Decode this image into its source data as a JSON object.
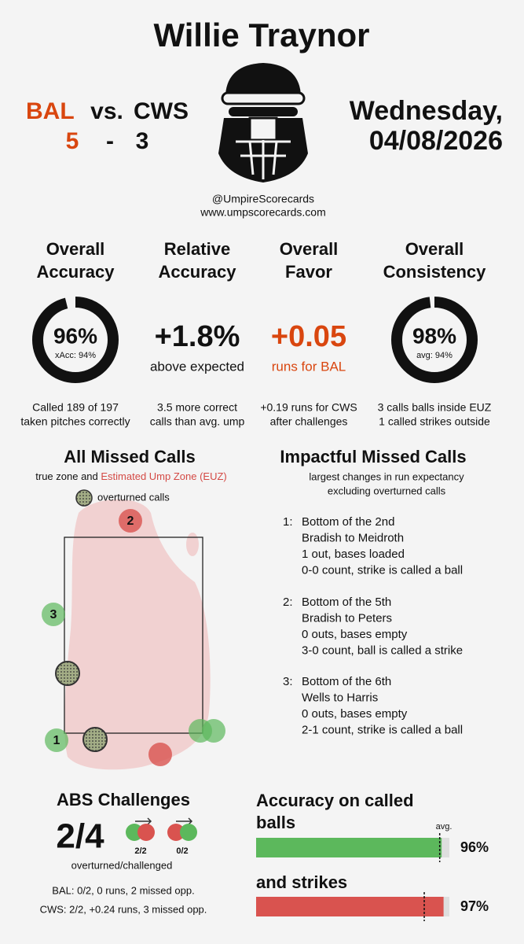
{
  "header": {
    "umpire": "Willie Traynor",
    "away_team": "BAL",
    "vs": "vs.",
    "home_team": "CWS",
    "away_score": 5,
    "dash": "-",
    "home_score": 3,
    "weekday": "Wednesday,",
    "date": "04/08/2026",
    "handle": "@UmpireScorecards",
    "website": "www.umpscorecards.com"
  },
  "metrics": [
    {
      "title_lines": [
        "Overall",
        "Accuracy"
      ],
      "gauge": {
        "value": 96,
        "label": "96%"
      },
      "sub": "xAcc: 94%",
      "note_lines": [
        "Called 189 of 197",
        "taken pitches correctly"
      ]
    },
    {
      "title_lines": [
        "Relative",
        "Accuracy"
      ],
      "value": "+1.8%",
      "sub": "above expected",
      "color": "#111111",
      "note_lines": [
        "3.5 more correct",
        "calls than avg. ump"
      ]
    },
    {
      "title_lines": [
        "Overall",
        "Favor"
      ],
      "value": "+0.05",
      "sub": "runs for BAL",
      "color": "#d9460f",
      "note_lines": [
        "+0.19 runs for CWS",
        "after challenges"
      ]
    },
    {
      "title_lines": [
        "Overall",
        "Consistency"
      ],
      "gauge": {
        "value": 98,
        "label": "98%"
      },
      "sub": "avg: 94%",
      "note_lines": [
        "3 calls balls inside EUZ",
        "1 called strikes outside"
      ]
    }
  ],
  "missed_calls": {
    "title": "All Missed Calls",
    "subtitle_prefix": "true zone and ",
    "subtitle_euz": "Estimated Ump Zone (EUZ)",
    "legend": "overturned calls",
    "markers": [
      "1",
      "2",
      "3"
    ]
  },
  "impactful": {
    "title": "Impactful Missed Calls",
    "subtitle_lines": [
      "largest changes in run expectancy",
      "excluding overturned calls"
    ],
    "items": [
      {
        "rank": "1:",
        "lines": [
          "Bottom of the 2nd",
          "Bradish to Meidroth",
          "1 out, bases loaded",
          "0-0 count, strike is called a ball"
        ]
      },
      {
        "rank": "2:",
        "lines": [
          "Bottom of the 5th",
          "Bradish to Peters",
          "0 outs, bases empty",
          "3-0 count, ball is called a strike"
        ]
      },
      {
        "rank": "3:",
        "lines": [
          "Bottom of the 6th",
          "Wells to Harris",
          "0 outs, bases empty",
          "2-1 count, strike is called a ball"
        ]
      }
    ]
  },
  "challenges": {
    "title": "ABS Challenges",
    "total": "2/4",
    "team_ratios": [
      "2/2",
      "0/2"
    ],
    "caption": "overturned/challenged",
    "lines": [
      "BAL: 0/2, 0 runs, 2 missed opp.",
      "CWS: 2/2, +0.24 runs, 3 missed opp."
    ]
  },
  "called": {
    "title_lines": [
      "Accuracy on called",
      "balls"
    ],
    "avg_label": "avg.",
    "strikes_title": "and strikes",
    "balls": {
      "value": 96,
      "label": "96%",
      "avg": 95,
      "color": "#5cb85c"
    },
    "strikes": {
      "value": 97,
      "label": "97%",
      "avg": 87,
      "color": "#d9534f"
    }
  }
}
